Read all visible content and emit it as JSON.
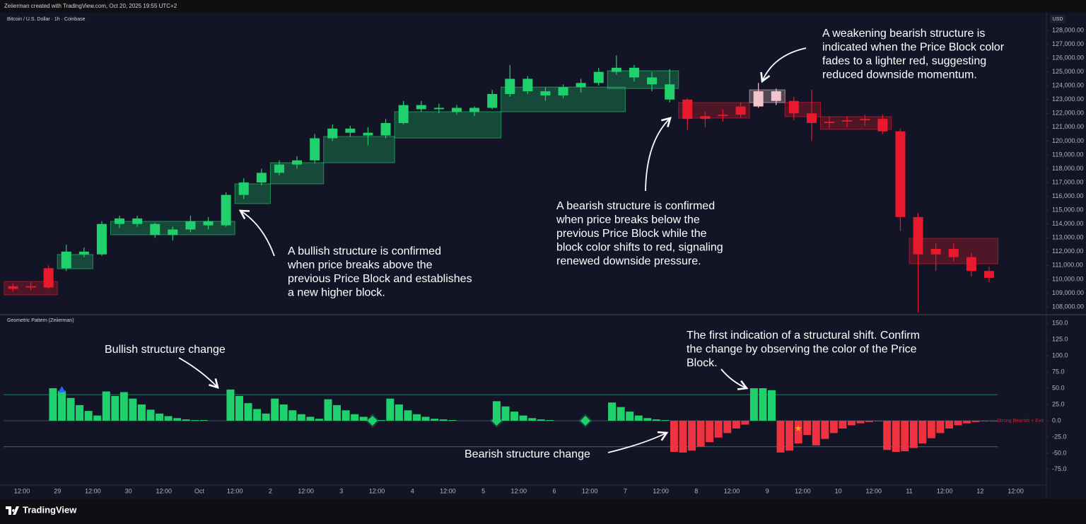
{
  "header": "Zeiierman created with TradingView.com, Oct 20, 2025 19:55 UTC+2",
  "currency": "USD",
  "footer": "TradingView",
  "xtick_labels": [
    "12:00",
    "29",
    "12:00",
    "30",
    "12:00",
    "Oct",
    "12:00",
    "2",
    "12:00",
    "3",
    "12:00",
    "4",
    "12:00",
    "5",
    "12:00",
    "6",
    "12:00",
    "7",
    "12:00",
    "8",
    "12:00",
    "9",
    "12:00",
    "10",
    "12:00",
    "11",
    "12:00",
    "12",
    "12:00"
  ],
  "chart_data": [
    {
      "type": "candlestick",
      "title": "Bitcoin / U.S. Dollar · 1h · Coinbase",
      "ylim": [
        107540,
        129280
      ],
      "yticks": [
        {
          "value": 108000,
          "label": "108,000.00"
        },
        {
          "value": 109000,
          "label": "109,000.00"
        },
        {
          "value": 110000,
          "label": "110,000.00"
        },
        {
          "value": 111000,
          "label": "111,000.00"
        },
        {
          "value": 112000,
          "label": "112,000.00"
        },
        {
          "value": 113000,
          "label": "113,000.00"
        },
        {
          "value": 114000,
          "label": "114,000.00"
        },
        {
          "value": 115000,
          "label": "115,000.00"
        },
        {
          "value": 116000,
          "label": "116,000.00"
        },
        {
          "value": 117000,
          "label": "117,000.00"
        },
        {
          "value": 118000,
          "label": "118,000.00"
        },
        {
          "value": 119000,
          "label": "119,000.00"
        },
        {
          "value": 120000,
          "label": "120,000.00"
        },
        {
          "value": 121000,
          "label": "121,000.00"
        },
        {
          "value": 122000,
          "label": "122,000.00"
        },
        {
          "value": 123000,
          "label": "123,000.00"
        },
        {
          "value": 124000,
          "label": "124,000.00"
        },
        {
          "value": 125000,
          "label": "125,000.00"
        },
        {
          "value": 126000,
          "label": "126,000.00"
        },
        {
          "value": 127000,
          "label": "127,000.00"
        },
        {
          "value": 128000,
          "label": "128,000.00"
        }
      ],
      "grid": false,
      "open": [
        109300,
        109500,
        109400,
        110800,
        112000,
        111800,
        114000,
        114400,
        114000,
        113200,
        113600,
        114200,
        113900,
        116100,
        117000,
        117700,
        118300,
        118600,
        120200,
        120900,
        120600,
        120400,
        121300,
        122600,
        122300,
        122400,
        122100,
        122400,
        123400,
        124500,
        123600,
        123300,
        123900,
        124200,
        125000,
        125300,
        124600,
        124100,
        123000,
        121600,
        121800,
        121900,
        122500,
        123600,
        122900,
        122000,
        121300,
        121400,
        121500,
        121600,
        120700,
        114500,
        111800,
        112200,
        111600,
        110600
      ],
      "high": [
        109700,
        109800,
        111000,
        112500,
        112300,
        114200,
        114600,
        114600,
        114100,
        113800,
        114600,
        114500,
        116300,
        117300,
        118000,
        118600,
        118900,
        120500,
        121200,
        121100,
        121000,
        121600,
        122900,
        122900,
        122700,
        122600,
        122500,
        123700,
        125500,
        124700,
        123900,
        124100,
        124500,
        125300,
        126200,
        125500,
        125000,
        125200,
        123100,
        122100,
        122300,
        122800,
        124200,
        123800,
        123200,
        123700,
        121800,
        121800,
        121900,
        121900,
        120900,
        114800,
        112600,
        112600,
        111900,
        110900
      ],
      "low": [
        109100,
        109200,
        109300,
        110600,
        111600,
        111700,
        113700,
        113800,
        113000,
        112800,
        113400,
        113600,
        113800,
        115800,
        116800,
        117500,
        118000,
        118400,
        120000,
        120300,
        119700,
        120200,
        121200,
        122100,
        122000,
        121900,
        121800,
        122300,
        123200,
        123400,
        122900,
        123100,
        123500,
        124000,
        124800,
        124300,
        123600,
        122800,
        120800,
        121000,
        121400,
        121700,
        122400,
        122600,
        121500,
        120000,
        120900,
        121000,
        121100,
        120500,
        113500,
        107600,
        110600,
        111300,
        110200,
        109800
      ],
      "close": [
        109500,
        109400,
        110800,
        112000,
        111800,
        114000,
        114400,
        114000,
        113200,
        113600,
        114200,
        113900,
        116100,
        117000,
        117700,
        118300,
        118600,
        120200,
        120900,
        120600,
        120400,
        121300,
        122600,
        122300,
        122400,
        122100,
        122400,
        123400,
        124500,
        123600,
        123300,
        123900,
        124200,
        125000,
        125300,
        124600,
        124100,
        123000,
        121600,
        121800,
        121900,
        122500,
        123600,
        122900,
        122000,
        121300,
        121400,
        121500,
        121600,
        120700,
        114500,
        111800,
        112200,
        111600,
        110600,
        110100
      ],
      "colors": [
        "#e8192c",
        "#e8192c",
        "#e8192c",
        "#1fd16c",
        "#1fd16c",
        "#1fd16c",
        "#1fd16c",
        "#1fd16c",
        "#1fd16c",
        "#1fd16c",
        "#1fd16c",
        "#1fd16c",
        "#1fd16c",
        "#1fd16c",
        "#1fd16c",
        "#1fd16c",
        "#1fd16c",
        "#1fd16c",
        "#1fd16c",
        "#1fd16c",
        "#1fd16c",
        "#1fd16c",
        "#1fd16c",
        "#1fd16c",
        "#1fd16c",
        "#1fd16c",
        "#1fd16c",
        "#1fd16c",
        "#1fd16c",
        "#1fd16c",
        "#1fd16c",
        "#1fd16c",
        "#1fd16c",
        "#1fd16c",
        "#1fd16c",
        "#1fd16c",
        "#1fd16c",
        "#1fd16c",
        "#e8192c",
        "#e8192c",
        "#e8192c",
        "#e8192c",
        "#f2c4cc",
        "#f2c4cc",
        "#e8192c",
        "#e8192c",
        "#e8192c",
        "#e8192c",
        "#e8192c",
        "#e8192c",
        "#e8192c",
        "#e8192c",
        "#e8192c",
        "#e8192c",
        "#e8192c",
        "#e8192c"
      ],
      "blocks": [
        {
          "start": 0,
          "end": 2,
          "top": 109840,
          "bottom": 108870,
          "color": "#e8192c"
        },
        {
          "start": 3,
          "end": 4,
          "top": 111790,
          "bottom": 110760,
          "color": "#1fd16c"
        },
        {
          "start": 6,
          "end": 12,
          "top": 114190,
          "bottom": 113220,
          "color": "#1fd16c"
        },
        {
          "start": 13,
          "end": 14,
          "top": 116900,
          "bottom": 115470,
          "color": "#1fd16c"
        },
        {
          "start": 15,
          "end": 17,
          "top": 118430,
          "bottom": 116900,
          "color": "#1fd16c"
        },
        {
          "start": 18,
          "end": 21,
          "top": 120330,
          "bottom": 118430,
          "color": "#1fd16c"
        },
        {
          "start": 22,
          "end": 27,
          "top": 122120,
          "bottom": 120220,
          "color": "#1fd16c"
        },
        {
          "start": 28,
          "end": 34,
          "top": 123900,
          "bottom": 122120,
          "color": "#1fd16c"
        },
        {
          "start": 34,
          "end": 37,
          "top": 125080,
          "bottom": 123800,
          "color": "#1fd16c"
        },
        {
          "start": 38,
          "end": 41,
          "top": 122780,
          "bottom": 121660,
          "color": "#e8192c"
        },
        {
          "start": 42,
          "end": 43,
          "top": 123700,
          "bottom": 122780,
          "color": "#f2c4cc"
        },
        {
          "start": 44,
          "end": 45,
          "top": 122800,
          "bottom": 121760,
          "color": "#e8192c"
        },
        {
          "start": 46,
          "end": 49,
          "top": 121760,
          "bottom": 120840,
          "color": "#e8192c"
        },
        {
          "start": 51,
          "end": 55,
          "top": 112960,
          "bottom": 111120,
          "color": "#e8192c"
        }
      ],
      "annotations": [
        {
          "lines": [
            "A bullish structure is confirmed",
            "when price breaks above the",
            "previous Price Block and establishes",
            "a new higher block."
          ]
        },
        {
          "lines": [
            "A bearish structure is confirmed",
            "when price breaks below the",
            "previous Price Block while the",
            "block color shifts to red, signaling",
            "renewed downside pressure."
          ]
        },
        {
          "lines": [
            "A weakening bearish structure is",
            "indicated when the Price Block color",
            "fades to a lighter red, suggesting",
            "reduced downside momentum."
          ]
        }
      ]
    },
    {
      "type": "bar",
      "title": "Geometric Pattern (Zeiierman)",
      "ylim": [
        -98,
        161
      ],
      "yticks": [
        {
          "value": 150,
          "label": "150.0"
        },
        {
          "value": 125,
          "label": "125.0"
        },
        {
          "value": 100,
          "label": "100.0"
        },
        {
          "value": 75,
          "label": "75.0"
        },
        {
          "value": 50,
          "label": "50.0"
        },
        {
          "value": 25,
          "label": "25.0"
        },
        {
          "value": 0,
          "label": "0.0"
        },
        {
          "value": -25,
          "label": "-25.0"
        },
        {
          "value": -50,
          "label": "-50.0"
        },
        {
          "value": -75,
          "label": "-75.0"
        }
      ],
      "grid": false,
      "values": [
        0,
        0,
        0,
        0,
        0,
        50,
        46,
        35,
        24,
        15,
        8,
        45,
        38,
        44,
        34,
        25,
        17,
        11,
        7,
        4,
        2,
        1,
        1,
        0,
        0,
        48,
        38,
        27,
        18,
        11,
        34,
        25,
        16,
        10,
        6,
        3,
        33,
        24,
        16,
        10,
        6,
        3,
        1,
        34,
        25,
        16,
        10,
        6,
        3,
        2,
        1,
        0,
        0,
        0,
        0,
        30,
        22,
        14,
        8,
        4,
        2,
        1,
        0,
        0,
        0,
        0,
        0,
        0,
        28,
        21,
        14,
        8,
        4,
        2,
        1,
        -48,
        -49,
        -46,
        -40,
        -33,
        -26,
        -19,
        -12,
        -6,
        50,
        50,
        47,
        -49,
        -46,
        -35,
        -22,
        -38,
        -28,
        -19,
        -12,
        -7,
        -4,
        -2,
        -1,
        -45,
        -48,
        -47,
        -42,
        -35,
        -27,
        -19,
        -12,
        -7,
        -4,
        -2,
        -1,
        -1
      ],
      "positive_color": "#1fd16c",
      "negative_color": "#f0313f",
      "levels": [
        40,
        -40
      ],
      "level_color": "#1f6f5f",
      "zero_color": "#3a4a5a",
      "series_label": "Strong Bearish + Extr",
      "series_label_color": "#e8192c",
      "markers": [
        {
          "index": 6,
          "value": 48,
          "shape": "triangle",
          "color": "#2962ff"
        },
        {
          "index": 41,
          "value": 0,
          "shape": "diamond",
          "color": "#1fd16c"
        },
        {
          "index": 55,
          "value": 0,
          "shape": "diamond",
          "color": "#1fd16c"
        },
        {
          "index": 65,
          "value": 0,
          "shape": "diamond",
          "color": "#1fd16c"
        },
        {
          "index": 89,
          "value": -12,
          "shape": "star",
          "color": "#f7a21b"
        }
      ],
      "annotations": [
        {
          "lines": [
            "Bullish structure change"
          ]
        },
        {
          "lines": [
            "Bearish structure change"
          ]
        },
        {
          "lines": [
            "The first indication of a structural shift. Confirm",
            "the change by observing the color of the Price",
            "Block."
          ]
        }
      ]
    }
  ]
}
